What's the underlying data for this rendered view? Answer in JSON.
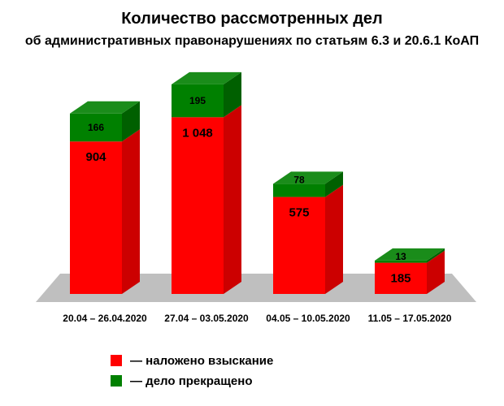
{
  "chart_data": {
    "type": "bar",
    "stacked": true,
    "three_d": true,
    "title": "Количество рассмотренных дел",
    "subtitle": "об административных правонарушениях по статьям 6.3 и 20.6.1 КоАП",
    "categories": [
      "20.04 – 26.04.2020",
      "27.04 – 03.05.2020",
      "04.05 – 10.05.2020",
      "11.05 – 17.05.2020"
    ],
    "value_labels": {
      "penalty": [
        "904",
        "1 048",
        "575",
        "185"
      ],
      "terminated": [
        "166",
        "195",
        "78",
        "13"
      ]
    },
    "series": [
      {
        "name": "— наложено взыскание",
        "color": "#ff0000",
        "values": [
          904,
          1048,
          575,
          185
        ]
      },
      {
        "name": "— дело прекращено",
        "color": "#008000",
        "values": [
          166,
          195,
          78,
          13
        ]
      }
    ],
    "ylim": [
      0,
      1300
    ],
    "grid": false,
    "legend_position": "bottom-left"
  }
}
